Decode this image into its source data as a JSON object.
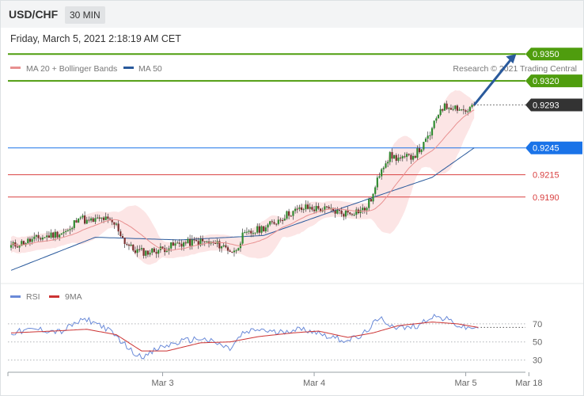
{
  "header": {
    "symbol": "USD/CHF",
    "interval": "30 MIN",
    "timestamp": "Friday, March 5, 2021 2:18:19 AM CET"
  },
  "copyright": "Research © 2021 Trading Central",
  "colors": {
    "resistance": "#4f9d0e",
    "support": "#d94040",
    "ma50": "#2a5a9c",
    "ma20": "#e89090",
    "bollinger_fill": "#fbdcdc",
    "pivot": "#1a73e8",
    "current": "#333333",
    "rsi": "#6a8ad8",
    "rsi_ma": "#cc3333"
  },
  "chart_data": [
    {
      "type": "candlestick",
      "title": "",
      "legend": [
        {
          "name": "MA 20 + Bollinger Bands",
          "color": "#e89090"
        },
        {
          "name": "MA 50",
          "color": "#2a5a9c"
        }
      ],
      "legend_placement": "top-left",
      "ylim": [
        0.9095,
        0.9375
      ],
      "x_ticks": [
        "Mar 3",
        "Mar 4",
        "Mar 5",
        "Mar 18"
      ],
      "x_tick_index": [
        72,
        144,
        216,
        246
      ],
      "levels": [
        {
          "label": "0.9350",
          "value": 0.935,
          "kind": "resistance"
        },
        {
          "label": "0.9320",
          "value": 0.932,
          "kind": "resistance"
        },
        {
          "label": "0.9293",
          "value": 0.9293,
          "kind": "current"
        },
        {
          "label": "0.9245",
          "value": 0.9245,
          "kind": "pivot"
        },
        {
          "label": "0.9215",
          "value": 0.9215,
          "kind": "support"
        },
        {
          "label": "0.9190",
          "value": 0.919,
          "kind": "support"
        }
      ],
      "forecast": {
        "from": [
          220,
          0.9293
        ],
        "to": [
          240,
          0.935
        ]
      },
      "anchors": [
        [
          0,
          0.9135
        ],
        [
          10,
          0.9142
        ],
        [
          20,
          0.9148
        ],
        [
          28,
          0.9152
        ],
        [
          32,
          0.917
        ],
        [
          36,
          0.9162
        ],
        [
          44,
          0.9166
        ],
        [
          50,
          0.9158
        ],
        [
          54,
          0.914
        ],
        [
          58,
          0.9131
        ],
        [
          64,
          0.9128
        ],
        [
          72,
          0.9132
        ],
        [
          80,
          0.9138
        ],
        [
          90,
          0.914
        ],
        [
          100,
          0.9136
        ],
        [
          106,
          0.9128
        ],
        [
          110,
          0.9146
        ],
        [
          116,
          0.9152
        ],
        [
          124,
          0.916
        ],
        [
          132,
          0.9172
        ],
        [
          140,
          0.9178
        ],
        [
          150,
          0.9176
        ],
        [
          158,
          0.9172
        ],
        [
          168,
          0.9176
        ],
        [
          172,
          0.9192
        ],
        [
          176,
          0.9224
        ],
        [
          180,
          0.9236
        ],
        [
          186,
          0.9232
        ],
        [
          192,
          0.9238
        ],
        [
          196,
          0.9248
        ],
        [
          200,
          0.9265
        ],
        [
          204,
          0.929
        ],
        [
          210,
          0.9292
        ],
        [
          216,
          0.9286
        ],
        [
          220,
          0.9293
        ]
      ],
      "ma50": [
        [
          0,
          0.9108
        ],
        [
          40,
          0.9145
        ],
        [
          80,
          0.9142
        ],
        [
          120,
          0.9147
        ],
        [
          160,
          0.918
        ],
        [
          200,
          0.9212
        ],
        [
          220,
          0.9245
        ]
      ]
    },
    {
      "type": "line",
      "legend": [
        {
          "name": "RSI",
          "color": "#6a8ad8"
        },
        {
          "name": "9MA",
          "color": "#cc3333"
        }
      ],
      "ylim": [
        20,
        90
      ],
      "y_ticks": [
        30,
        50,
        70
      ],
      "series": [
        {
          "name": "RSI",
          "anchors": [
            [
              0,
              60
            ],
            [
              12,
              64
            ],
            [
              24,
              61
            ],
            [
              30,
              70
            ],
            [
              36,
              75
            ],
            [
              44,
              67
            ],
            [
              52,
              52
            ],
            [
              58,
              38
            ],
            [
              64,
              34
            ],
            [
              70,
              43
            ],
            [
              80,
              50
            ],
            [
              90,
              54
            ],
            [
              98,
              48
            ],
            [
              104,
              42
            ],
            [
              110,
              59
            ],
            [
              118,
              64
            ],
            [
              126,
              60
            ],
            [
              134,
              64
            ],
            [
              142,
              63
            ],
            [
              150,
              57
            ],
            [
              158,
              52
            ],
            [
              166,
              55
            ],
            [
              172,
              70
            ],
            [
              176,
              75
            ],
            [
              182,
              67
            ],
            [
              188,
              65
            ],
            [
              194,
              69
            ],
            [
              200,
              79
            ],
            [
              208,
              74
            ],
            [
              214,
              66
            ],
            [
              218,
              65
            ],
            [
              222,
              67
            ]
          ]
        },
        {
          "name": "9MA",
          "anchors": [
            [
              0,
              60
            ],
            [
              20,
              62
            ],
            [
              36,
              64
            ],
            [
              50,
              58
            ],
            [
              62,
              40
            ],
            [
              74,
              40
            ],
            [
              90,
              49
            ],
            [
              104,
              50
            ],
            [
              118,
              56
            ],
            [
              134,
              60
            ],
            [
              146,
              62
            ],
            [
              160,
              55
            ],
            [
              172,
              60
            ],
            [
              184,
              68
            ],
            [
              200,
              72
            ],
            [
              212,
              70
            ],
            [
              222,
              66
            ]
          ]
        }
      ]
    }
  ]
}
